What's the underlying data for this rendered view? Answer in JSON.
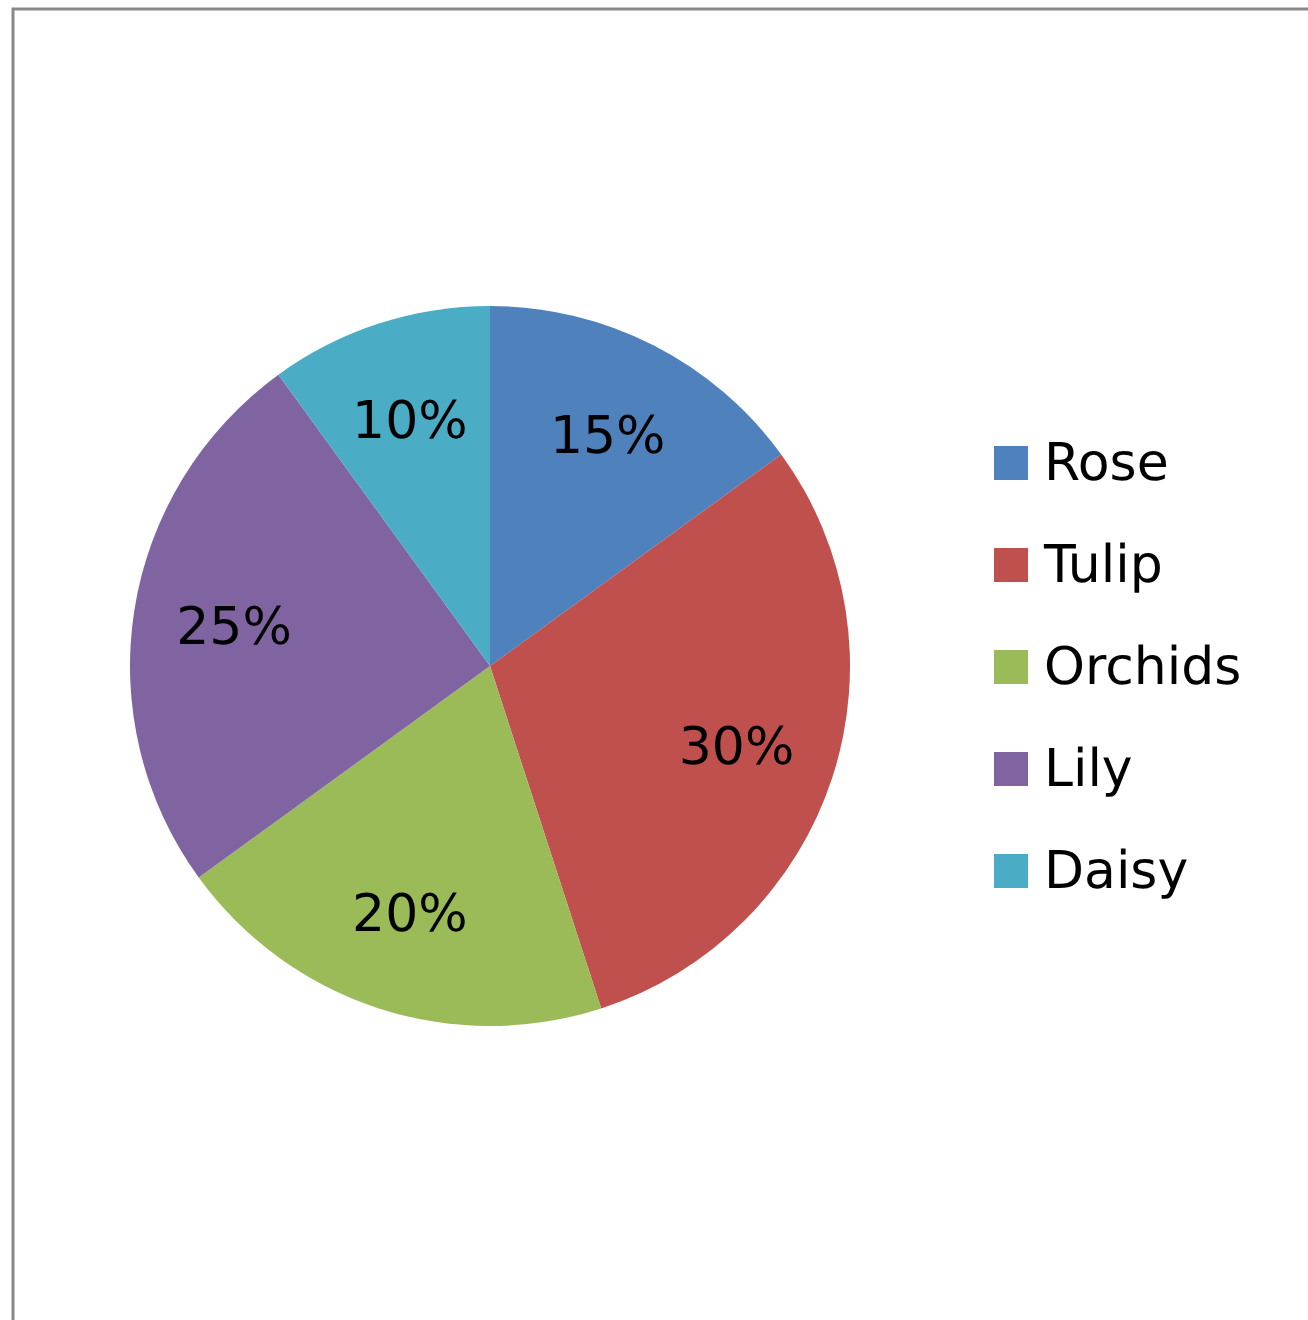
{
  "chart_data": {
    "type": "pie",
    "categories": [
      "Rose",
      "Tulip",
      "Orchids",
      "Lily",
      "Daisy"
    ],
    "values": [
      15,
      30,
      20,
      25,
      10
    ],
    "colors": [
      "#4f81bd",
      "#c0504d",
      "#9bbb59",
      "#8064a2",
      "#4bacc6"
    ],
    "value_labels": [
      "15%",
      "30%",
      "20%",
      "25%",
      "10%"
    ],
    "legend": "right"
  }
}
